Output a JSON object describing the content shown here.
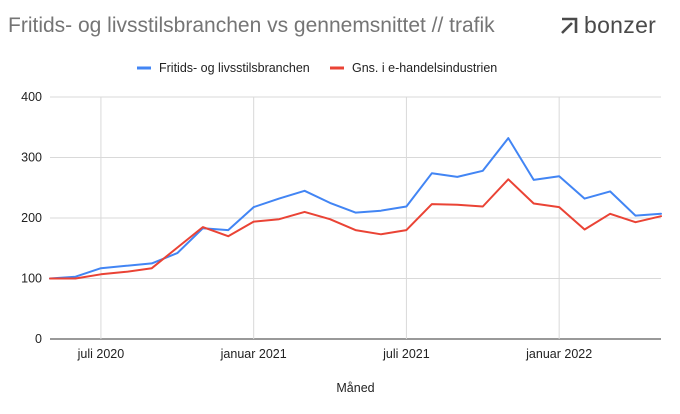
{
  "title": "Fritids- og livsstilsbranchen vs gennemsnittet // trafik",
  "brand": {
    "name": "bonzer",
    "icon": "bonzer-logo-icon"
  },
  "chart_data": {
    "type": "line",
    "xlabel": "Måned",
    "ylabel": "",
    "ylim": [
      0,
      400
    ],
    "yticks": [
      0,
      100,
      200,
      300,
      400
    ],
    "grid": true,
    "legend_position": "top",
    "x": [
      "2020-05",
      "2020-06",
      "2020-07",
      "2020-08",
      "2020-09",
      "2020-10",
      "2020-11",
      "2020-12",
      "2021-01",
      "2021-02",
      "2021-03",
      "2021-04",
      "2021-05",
      "2021-06",
      "2021-07",
      "2021-08",
      "2021-09",
      "2021-10",
      "2021-11",
      "2021-12",
      "2022-01",
      "2022-02",
      "2022-03",
      "2022-04",
      "2022-05"
    ],
    "xtick_labels": [
      {
        "x": "2020-07",
        "label": "juli 2020"
      },
      {
        "x": "2021-01",
        "label": "januar 2021"
      },
      {
        "x": "2021-07",
        "label": "juli 2021"
      },
      {
        "x": "2022-01",
        "label": "januar 2022"
      }
    ],
    "series": [
      {
        "name": "Fritids- og livsstilsbranchen",
        "color": "#4285f4",
        "values": [
          100,
          103,
          117,
          121,
          125,
          142,
          183,
          180,
          218,
          232,
          245,
          225,
          209,
          212,
          219,
          274,
          268,
          278,
          332,
          263,
          269,
          232,
          244,
          204,
          207
        ]
      },
      {
        "name": "Gns. i e-handelsindustrien",
        "color": "#ea4335",
        "values": [
          100,
          100,
          107,
          111,
          117,
          151,
          185,
          170,
          194,
          198,
          210,
          198,
          180,
          173,
          180,
          223,
          222,
          219,
          264,
          224,
          218,
          181,
          207,
          193,
          203
        ]
      }
    ]
  }
}
